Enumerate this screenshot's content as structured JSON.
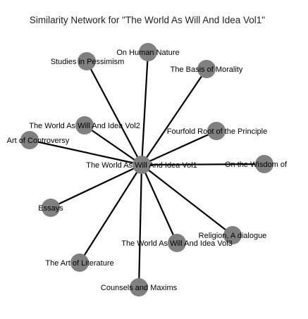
{
  "title": "Similarity Network for \"The World As Will And Idea Vol1\"",
  "colors": {
    "edge": "#000000",
    "node": "#808080",
    "text": "#000000",
    "background": "#ffffff"
  },
  "center": {
    "id": "vol1",
    "label": "The World As Will And Idea Vol1"
  },
  "nodes": [
    {
      "id": "pessimism",
      "label": "Studies in Pessimism"
    },
    {
      "id": "human-nature",
      "label": "On Human Nature"
    },
    {
      "id": "morality",
      "label": "The Basis of Morality"
    },
    {
      "id": "vol2",
      "label": "The World As Will And Idea Vol2"
    },
    {
      "id": "controversy",
      "label": "Art of Controversy"
    },
    {
      "id": "fourfold",
      "label": "Fourfold Root of the Principle"
    },
    {
      "id": "wisdom",
      "label": "On the Wisdom of"
    },
    {
      "id": "essays",
      "label": "Essays"
    },
    {
      "id": "religion",
      "label": "Religion, A dialogue"
    },
    {
      "id": "vol3",
      "label": "The World As Will And Idea Vol3"
    },
    {
      "id": "literature",
      "label": "The Art of Literature"
    },
    {
      "id": "counsels",
      "label": "Counsels and Maxims"
    }
  ],
  "edges": [
    {
      "from": "vol1",
      "to": "pessimism"
    },
    {
      "from": "vol1",
      "to": "human-nature"
    },
    {
      "from": "vol1",
      "to": "morality"
    },
    {
      "from": "vol1",
      "to": "vol2"
    },
    {
      "from": "vol1",
      "to": "controversy"
    },
    {
      "from": "vol1",
      "to": "fourfold"
    },
    {
      "from": "vol1",
      "to": "wisdom"
    },
    {
      "from": "vol1",
      "to": "essays"
    },
    {
      "from": "vol1",
      "to": "religion"
    },
    {
      "from": "vol1",
      "to": "vol3"
    },
    {
      "from": "vol1",
      "to": "literature"
    },
    {
      "from": "vol1",
      "to": "counsels"
    }
  ]
}
